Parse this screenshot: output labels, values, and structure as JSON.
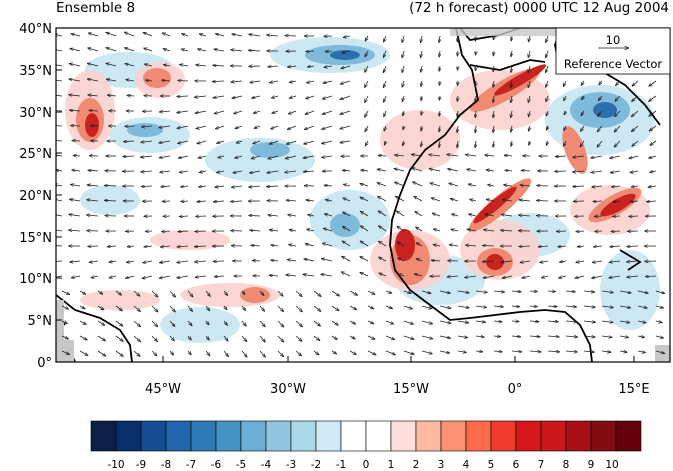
{
  "title_left": "Ensemble 8",
  "title_right": "(72 h forecast) 0000 UTC 12 Aug 2004",
  "map": {
    "lat_labels": [
      "40°N",
      "35°N",
      "30°N",
      "25°N",
      "20°N",
      "15°N",
      "10°N",
      "5°N",
      "0°"
    ],
    "lon_labels": [
      "45°W",
      "30°W",
      "15°W",
      "0°",
      "15°E"
    ],
    "field_colors": {
      "neg_light": "#a8d8e8",
      "neg_mid": "#58a4d0",
      "neg_dark": "#1e5a9a",
      "pos_light": "#fbd2cf",
      "pos_mid": "#f0826a",
      "pos_dark": "#c8231f",
      "land_mask": "#c8c8c8"
    }
  },
  "reference_vector": {
    "magnitude": "10",
    "label": "Reference Vector"
  },
  "colorbar": {
    "labels": [
      "-10",
      "-9",
      "-8",
      "-7",
      "-6",
      "-5",
      "-4",
      "-3",
      "-2",
      "-1",
      "0",
      "1",
      "2",
      "3",
      "4",
      "5",
      "6",
      "7",
      "8",
      "9",
      "10"
    ],
    "colors": [
      "#0d1f47",
      "#08306b",
      "#144e90",
      "#2166ac",
      "#2c7bb6",
      "#4393c3",
      "#6baed6",
      "#92c5de",
      "#abd9e9",
      "#d1ecf6",
      "#ffffff",
      "#ffffff",
      "#fde0dd",
      "#fcbba1",
      "#fc9272",
      "#fb6a4a",
      "#ef3b2c",
      "#d7191c",
      "#cb181d",
      "#a50f15",
      "#800d12",
      "#67000d"
    ]
  }
}
